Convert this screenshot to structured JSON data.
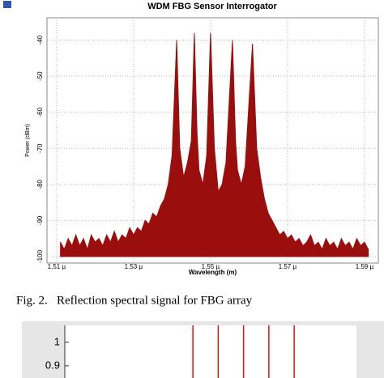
{
  "chart_data": [
    {
      "type": "area",
      "title": "WDM FBG Sensor Interrogator",
      "x_label": "Wavelength (m)",
      "y_label": "Power (dBm)",
      "xlim": [
        1.5075,
        1.5936
      ],
      "ylim": [
        -101.8,
        -33.8
      ],
      "xticks": [
        {
          "value": 1.51,
          "label": "1.51 µ"
        },
        {
          "value": 1.53,
          "label": "1.53 µ"
        },
        {
          "value": 1.55,
          "label": "1.55 µ"
        },
        {
          "value": 1.57,
          "label": "1.57 µ"
        },
        {
          "value": 1.59,
          "label": "1.59 µ"
        }
      ],
      "yticks": [
        -40,
        -50,
        -60,
        -70,
        -80,
        -90,
        -100
      ],
      "grid": true,
      "series": [
        {
          "color": "#9b0e0e",
          "x": [
            1.511,
            1.512,
            1.513,
            1.514,
            1.515,
            1.516,
            1.517,
            1.518,
            1.519,
            1.52,
            1.521,
            1.522,
            1.523,
            1.524,
            1.525,
            1.526,
            1.527,
            1.528,
            1.529,
            1.53,
            1.531,
            1.532,
            1.533,
            1.534,
            1.535,
            1.536,
            1.537,
            1.538,
            1.539,
            1.54,
            1.5412,
            1.542,
            1.543,
            1.544,
            1.545,
            1.5458,
            1.5465,
            1.547,
            1.548,
            1.549,
            1.55,
            1.551,
            1.552,
            1.553,
            1.554,
            1.5557,
            1.5565,
            1.557,
            1.558,
            1.559,
            1.5609,
            1.562,
            1.563,
            1.564,
            1.565,
            1.566,
            1.567,
            1.568,
            1.569,
            1.57,
            1.571,
            1.572,
            1.573,
            1.574,
            1.575,
            1.576,
            1.577,
            1.578,
            1.579,
            1.58,
            1.581,
            1.582,
            1.583,
            1.584,
            1.585,
            1.586,
            1.587,
            1.588,
            1.589,
            1.59,
            1.591
          ],
          "values": [
            -96,
            -98,
            -95,
            -97,
            -94,
            -97,
            -95,
            -98,
            -94,
            -96,
            -95,
            -97,
            -94,
            -96,
            -93,
            -96,
            -94,
            -95,
            -92,
            -94,
            -92,
            -93,
            -90,
            -91,
            -88,
            -89,
            -86,
            -84,
            -80,
            -72,
            -40,
            -70,
            -78,
            -74,
            -68,
            -38,
            -66,
            -76,
            -80,
            -72,
            -38,
            -70,
            -82,
            -80,
            -74,
            -40,
            -68,
            -76,
            -80,
            -75,
            -41,
            -70,
            -78,
            -84,
            -88,
            -90,
            -92,
            -94,
            -93,
            -95,
            -94,
            -96,
            -95,
            -97,
            -96,
            -94,
            -97,
            -96,
            -98,
            -95,
            -97,
            -96,
            -98,
            -95,
            -97,
            -96,
            -98,
            -95,
            -97,
            -96,
            -98
          ]
        }
      ]
    },
    {
      "type": "stem",
      "xlim": [
        -4.06,
        7.46
      ],
      "ylim": [
        0.848,
        1.072
      ],
      "yticks": [
        1,
        0.9
      ],
      "series": [
        {
          "color": "#e01010",
          "x": [
            1,
            2,
            3,
            4,
            5
          ],
          "values": [
            1.072,
            1.072,
            1.072,
            1.072,
            1.072
          ]
        }
      ]
    }
  ],
  "caption": "Fig. 2.   Reflection spectral signal for FBG array"
}
